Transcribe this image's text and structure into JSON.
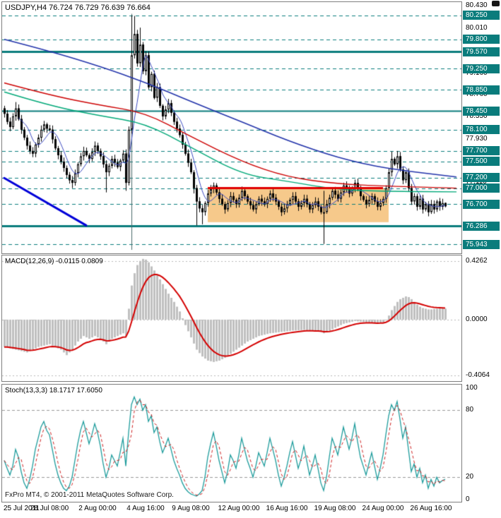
{
  "footer": {
    "copyright": "FxPro MT4, © 2001-2011 MetaQuotes Software Corp."
  },
  "colors": {
    "level": "#0a7c7c",
    "badge_bg": "#0a7c7c",
    "badge_text": "#ffffff",
    "candle_up": "#ffffff",
    "candle_down": "#000000",
    "candle_border": "#000000"
  },
  "chart_data": [
    {
      "type": "candlestick",
      "symbol": "USDJPY",
      "timeframe": "H4",
      "title": "USDJPY,H4 76.724 76.729 76.639 76.664",
      "ohlc_current": {
        "open": 76.724,
        "high": 76.729,
        "low": 76.639,
        "close": 76.664
      },
      "price_range": [
        75.8,
        80.5
      ],
      "closes": [
        78.4,
        78.25,
        78.15,
        78.35,
        78.5,
        78.3,
        78.1,
        77.95,
        77.8,
        77.7,
        77.65,
        77.82,
        77.95,
        78.1,
        78.2,
        78.12,
        78.1,
        77.92,
        77.75,
        77.62,
        77.5,
        77.38,
        77.25,
        77.15,
        77.1,
        77.28,
        77.45,
        77.6,
        77.7,
        77.62,
        77.55,
        77.68,
        77.8,
        77.7,
        77.6,
        77.45,
        77.3,
        77.42,
        77.55,
        77.48,
        77.4,
        77.52,
        77.65,
        77.1,
        78.1,
        79.5,
        79.9,
        79.35,
        79.7,
        79.2,
        79.5,
        78.9,
        79.15,
        78.7,
        78.9,
        78.55,
        78.35,
        78.48,
        78.6,
        78.42,
        78.25,
        78.12,
        78.0,
        77.82,
        77.65,
        77.48,
        77.3,
        77.0,
        76.75,
        76.62,
        76.55,
        76.72,
        76.9,
        76.98,
        77.05,
        76.92,
        76.8,
        76.7,
        76.6,
        76.72,
        76.85,
        76.78,
        76.7,
        76.82,
        76.95,
        76.85,
        76.75,
        76.68,
        76.6,
        76.7,
        76.8,
        76.75,
        76.7,
        76.8,
        76.9,
        76.82,
        76.75,
        76.65,
        76.55,
        76.62,
        76.7,
        76.78,
        76.85,
        76.75,
        76.65,
        76.72,
        76.8,
        76.7,
        76.6,
        76.68,
        76.75,
        76.65,
        76.55,
        76.55,
        76.7,
        76.82,
        76.95,
        76.88,
        76.8,
        76.92,
        77.05,
        76.98,
        76.9,
        77.0,
        77.1,
        76.98,
        76.85,
        76.78,
        76.7,
        76.78,
        76.85,
        76.75,
        76.65,
        76.72,
        76.8,
        77.0,
        77.3,
        77.55,
        77.45,
        77.6,
        77.35,
        77.15,
        77.3,
        77.0,
        76.75,
        76.85,
        76.65,
        76.8,
        76.6,
        76.7,
        76.55,
        76.7,
        76.6,
        76.75,
        76.65,
        76.72,
        76.66
      ],
      "special_highs": {
        "0": 78.55,
        "4": 78.62,
        "45": 80.25,
        "46": 80.24,
        "48": 80.02,
        "113": 76.95,
        "137": 77.69,
        "139": 77.7,
        "156": 76.729
      },
      "special_lows": {
        "24": 77.0,
        "36": 76.92,
        "43": 76.95,
        "67": 76.9,
        "68": 76.3,
        "70": 76.32,
        "113": 75.95,
        "156": 76.639
      },
      "levels": [
        {
          "price": 80.25,
          "label": "80.250"
        },
        {
          "price": 79.8,
          "label": "79.800"
        },
        {
          "price": 79.57,
          "label": "79.570",
          "w": 3,
          "solid": true
        },
        {
          "price": 79.25,
          "label": "79.250"
        },
        {
          "price": 78.85,
          "label": "78.850"
        },
        {
          "price": 78.45,
          "label": "78.450",
          "w": 2,
          "solid": true
        },
        {
          "price": 78.1,
          "label": "78.100"
        },
        {
          "price": 77.7,
          "label": "77.700"
        },
        {
          "price": 77.5,
          "label": "77.500"
        },
        {
          "price": 77.2,
          "label": "77.200"
        },
        {
          "price": 77.0,
          "label": "77.000"
        },
        {
          "price": 76.7,
          "label": "76.700"
        },
        {
          "price": 76.286,
          "label": "76.286",
          "w": 3,
          "solid": true
        },
        {
          "price": 75.943,
          "label": "75.943"
        }
      ],
      "scale_ticks": [
        {
          "price": 80.43,
          "label": "80.430"
        },
        {
          "price": 80.01,
          "label": "80.010"
        },
        {
          "price": 79.16,
          "label": "79.160"
        },
        {
          "price": 78.76,
          "label": "78.760"
        },
        {
          "price": 78.35,
          "label": "78.350"
        },
        {
          "price": 77.93,
          "label": "77.930"
        },
        {
          "price": 77.11,
          "label": "77.110"
        },
        {
          "price": 75.89,
          "label": "75.890"
        }
      ],
      "ma_lines": [
        {
          "name": "ma-slow-blue",
          "color": "#2233aa",
          "width": 1.6,
          "points": [
            [
              0,
              79.8
            ],
            [
              16,
              79.58
            ],
            [
              34,
              79.29
            ],
            [
              50,
              78.99
            ],
            [
              66,
              78.63
            ],
            [
              84,
              78.25
            ],
            [
              100,
              77.9
            ],
            [
              118,
              77.57
            ],
            [
              135,
              77.37
            ],
            [
              160,
              77.21
            ]
          ]
        },
        {
          "name": "ma-red",
          "color": "#cc0000",
          "width": 1.4,
          "points": [
            [
              0,
              78.98
            ],
            [
              16,
              78.75
            ],
            [
              34,
              78.56
            ],
            [
              50,
              78.42
            ],
            [
              66,
              77.97
            ],
            [
              84,
              77.5
            ],
            [
              100,
              77.21
            ],
            [
              118,
              77.08
            ],
            [
              135,
              77.04
            ],
            [
              160,
              77.0
            ]
          ]
        },
        {
          "name": "ma-green",
          "color": "#00a878",
          "width": 1.4,
          "points": [
            [
              0,
              78.81
            ],
            [
              16,
              78.55
            ],
            [
              34,
              78.36
            ],
            [
              50,
              78.22
            ],
            [
              66,
              77.77
            ],
            [
              84,
              77.26
            ],
            [
              100,
              77.13
            ],
            [
              118,
              76.97
            ],
            [
              135,
              76.94
            ],
            [
              160,
              76.93
            ]
          ]
        }
      ],
      "fast_ma": {
        "period": 6,
        "color": "#3a49c0",
        "width": 1
      },
      "trendline": {
        "i1": 0,
        "p1": 77.19,
        "i2": 29,
        "p2": 76.3,
        "color": "#0000d8",
        "width": 3
      },
      "hline": {
        "price": 77.0,
        "i1": 72,
        "i2": 134,
        "color": "#e00000",
        "width": 3
      },
      "rect": {
        "i1": 72,
        "i2": 136,
        "p1": 77.0,
        "p2": 76.36,
        "color": "#f6c98b"
      },
      "vline": {
        "i": 45,
        "p1": 80.28,
        "p2": 75.84,
        "color": "#4a6a6a",
        "width": 1
      },
      "time_labels": [
        {
          "text": "25 Jul 2011",
          "i": 0
        },
        {
          "text": "28 Jul 08:00",
          "i": 16
        },
        {
          "text": "2 Aug 00:00",
          "i": 33
        },
        {
          "text": "4 Aug 16:00",
          "i": 50
        },
        {
          "text": "9 Aug 08:00",
          "i": 66
        },
        {
          "text": "12 Aug 00:00",
          "i": 83
        },
        {
          "text": "16 Aug 16:00",
          "i": 100
        },
        {
          "text": "19 Aug 08:00",
          "i": 117
        },
        {
          "text": "24 Aug 00:00",
          "i": 134
        },
        {
          "text": "26 Aug 16:00",
          "i": 151
        }
      ]
    },
    {
      "type": "bar",
      "name": "MACD",
      "label": "MACD(12,26,9) -0.0115 0.0809",
      "values_shown": [
        -0.0115,
        0.0809
      ],
      "range": [
        -0.45,
        0.47
      ],
      "ticks": [
        {
          "v": 0.4262,
          "label": "0.4262"
        },
        {
          "v": 0,
          "label": "0.0000"
        },
        {
          "v": -0.4064,
          "label": "-0.4064"
        }
      ],
      "bar_color": "#bfbfbf",
      "signal_color": "#d40000",
      "signal_ema": 9,
      "waypoints": [
        [
          0,
          -0.2
        ],
        [
          4,
          -0.22
        ],
        [
          8,
          -0.24
        ],
        [
          12,
          -0.2
        ],
        [
          16,
          -0.18
        ],
        [
          20,
          -0.22
        ],
        [
          22,
          -0.26
        ],
        [
          24,
          -0.22
        ],
        [
          26,
          -0.16
        ],
        [
          28,
          -0.12
        ],
        [
          30,
          -0.14
        ],
        [
          32,
          -0.12
        ],
        [
          34,
          -0.14
        ],
        [
          36,
          -0.18
        ],
        [
          38,
          -0.14
        ],
        [
          40,
          -0.12
        ],
        [
          42,
          -0.1
        ],
        [
          43,
          -0.12
        ],
        [
          44,
          0.08
        ],
        [
          45,
          0.25
        ],
        [
          46,
          0.34
        ],
        [
          47,
          0.4
        ],
        [
          48,
          0.43
        ],
        [
          49,
          0.445
        ],
        [
          50,
          0.44
        ],
        [
          51,
          0.42
        ],
        [
          52,
          0.39
        ],
        [
          54,
          0.33
        ],
        [
          56,
          0.26
        ],
        [
          58,
          0.19
        ],
        [
          60,
          0.13
        ],
        [
          62,
          0.06
        ],
        [
          64,
          -0.04
        ],
        [
          66,
          -0.13
        ],
        [
          68,
          -0.22
        ],
        [
          70,
          -0.27
        ],
        [
          72,
          -0.3
        ],
        [
          74,
          -0.31
        ],
        [
          76,
          -0.3
        ],
        [
          78,
          -0.28
        ],
        [
          80,
          -0.25
        ],
        [
          82,
          -0.22
        ],
        [
          84,
          -0.19
        ],
        [
          86,
          -0.16
        ],
        [
          88,
          -0.14
        ],
        [
          90,
          -0.12
        ],
        [
          92,
          -0.11
        ],
        [
          94,
          -0.1
        ],
        [
          96,
          -0.095
        ],
        [
          98,
          -0.09
        ],
        [
          100,
          -0.085
        ],
        [
          102,
          -0.08
        ],
        [
          104,
          -0.078
        ],
        [
          106,
          -0.075
        ],
        [
          108,
          -0.08
        ],
        [
          110,
          -0.085
        ],
        [
          112,
          -0.09
        ],
        [
          113,
          -0.1
        ],
        [
          114,
          -0.09
        ],
        [
          116,
          -0.07
        ],
        [
          118,
          -0.05
        ],
        [
          120,
          -0.03
        ],
        [
          122,
          -0.02
        ],
        [
          124,
          -0.01
        ],
        [
          126,
          -0.015
        ],
        [
          128,
          -0.02
        ],
        [
          130,
          -0.025
        ],
        [
          132,
          -0.03
        ],
        [
          134,
          -0.02
        ],
        [
          135,
          0.0
        ],
        [
          136,
          0.03
        ],
        [
          137,
          0.07
        ],
        [
          138,
          0.1
        ],
        [
          139,
          0.13
        ],
        [
          140,
          0.15
        ],
        [
          141,
          0.16
        ],
        [
          142,
          0.17
        ],
        [
          143,
          0.165
        ],
        [
          144,
          0.15
        ],
        [
          145,
          0.13
        ],
        [
          146,
          0.11
        ],
        [
          147,
          0.095
        ],
        [
          148,
          0.085
        ],
        [
          149,
          0.08
        ],
        [
          150,
          0.075
        ],
        [
          151,
          0.075
        ],
        [
          152,
          0.078
        ],
        [
          153,
          0.08
        ],
        [
          154,
          0.082
        ],
        [
          155,
          0.082
        ],
        [
          156,
          0.081
        ]
      ]
    },
    {
      "type": "line",
      "name": "Stochastic",
      "label": "Stoch(13,3,3) 18.1717 17.6050",
      "values_shown": [
        18.1717,
        17.605
      ],
      "range": [
        0,
        100
      ],
      "dashed_levels": [
        80,
        20
      ],
      "ticks": [
        {
          "v": 100,
          "label": "100"
        },
        {
          "v": 80,
          "label": "80"
        },
        {
          "v": 20,
          "label": "20"
        },
        {
          "v": 0,
          "label": "0"
        }
      ],
      "k_color": "#1e9c9c",
      "d_color": "#cc2222",
      "d_period": 3,
      "k": [
        35,
        28,
        22,
        30,
        45,
        38,
        25,
        15,
        10,
        18,
        30,
        45,
        55,
        65,
        70,
        62,
        58,
        45,
        32,
        22,
        15,
        10,
        8,
        12,
        20,
        35,
        50,
        62,
        70,
        60,
        50,
        58,
        68,
        60,
        48,
        32,
        20,
        28,
        40,
        35,
        30,
        42,
        55,
        30,
        60,
        85,
        92,
        85,
        90,
        80,
        85,
        70,
        75,
        60,
        65,
        52,
        42,
        48,
        55,
        45,
        35,
        28,
        22,
        15,
        10,
        7,
        5,
        4,
        3,
        5,
        8,
        20,
        38,
        50,
        60,
        48,
        35,
        25,
        15,
        25,
        40,
        35,
        28,
        40,
        55,
        45,
        35,
        28,
        20,
        30,
        42,
        36,
        30,
        42,
        55,
        45,
        35,
        22,
        12,
        20,
        30,
        42,
        52,
        40,
        28,
        36,
        48,
        35,
        22,
        30,
        40,
        28,
        15,
        8,
        20,
        38,
        55,
        48,
        40,
        52,
        65,
        55,
        45,
        55,
        68,
        52,
        38,
        30,
        22,
        32,
        42,
        30,
        18,
        28,
        40,
        58,
        75,
        85,
        80,
        88,
        72,
        55,
        65,
        45,
        25,
        32,
        20,
        28,
        15,
        22,
        10,
        18,
        12,
        20,
        15,
        17,
        18.2
      ]
    }
  ]
}
